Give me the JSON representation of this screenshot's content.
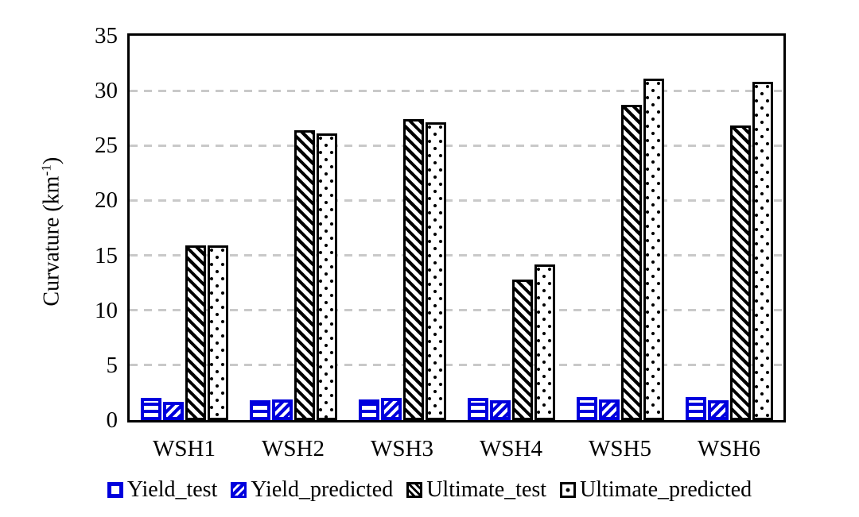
{
  "chart_data": {
    "type": "bar",
    "title": "",
    "ylabel": {
      "main": "Curvature (km",
      "sup": "-1",
      "end": ")"
    },
    "xlabel": "",
    "categories": [
      "WSH1",
      "WSH2",
      "WSH3",
      "WSH4",
      "WSH5",
      "WSH6"
    ],
    "series": [
      {
        "name": "Yield_test",
        "color": "#0000dd",
        "pattern": "horizontal-stripes",
        "values": [
          2.0,
          1.8,
          1.9,
          2.0,
          2.1,
          2.1
        ]
      },
      {
        "name": "Yield_predicted",
        "color": "#0000dd",
        "pattern": "diagonal-up",
        "values": [
          1.7,
          1.9,
          2.0,
          1.8,
          1.9,
          1.8
        ]
      },
      {
        "name": "Ultimate_test",
        "color": "#000000",
        "pattern": "diagonal-down",
        "values": [
          15.9,
          26.4,
          27.4,
          12.8,
          28.7,
          26.8
        ]
      },
      {
        "name": "Ultimate_predicted",
        "color": "#000000",
        "pattern": "dots",
        "values": [
          15.9,
          26.1,
          27.1,
          14.2,
          31.1,
          30.8
        ]
      }
    ],
    "ylim": [
      0,
      35
    ],
    "yticks": [
      0,
      5,
      10,
      15,
      20,
      25,
      30,
      35
    ],
    "grid": "horizontal-dashed",
    "grid_color": "#c9c9c9",
    "frame_color": "#000000",
    "legend_position": "bottom"
  }
}
